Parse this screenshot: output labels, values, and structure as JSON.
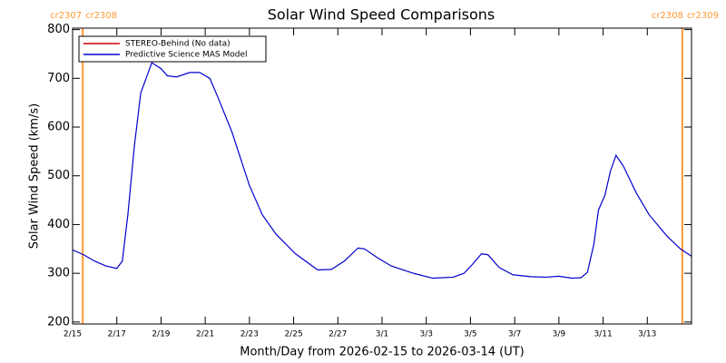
{
  "chart_data": {
    "type": "line",
    "title": "Solar Wind Speed Comparisons",
    "xlabel": "Month/Day from 2026-02-15 to 2026-03-14 (UT)",
    "ylabel": "Solar Wind Speed (km/s)",
    "xlim": [
      "2026-02-15",
      "2026-03-15"
    ],
    "ylim": [
      196,
      803
    ],
    "yticks": [
      200,
      300,
      400,
      500,
      600,
      700,
      800
    ],
    "xticks": [
      {
        "value": "2026-02-15",
        "label": "2/15"
      },
      {
        "value": "2026-02-17",
        "label": "2/17"
      },
      {
        "value": "2026-02-19",
        "label": "2/19"
      },
      {
        "value": "2026-02-21",
        "label": "2/21"
      },
      {
        "value": "2026-02-23",
        "label": "2/23"
      },
      {
        "value": "2026-02-25",
        "label": "2/25"
      },
      {
        "value": "2026-02-27",
        "label": "2/27"
      },
      {
        "value": "2026-03-01",
        "label": "3/1"
      },
      {
        "value": "2026-03-03",
        "label": "3/3"
      },
      {
        "value": "2026-03-05",
        "label": "3/5"
      },
      {
        "value": "2026-03-07",
        "label": "3/7"
      },
      {
        "value": "2026-03-09",
        "label": "3/9"
      },
      {
        "value": "2026-03-11",
        "label": "3/11"
      },
      {
        "value": "2026-03-13",
        "label": "3/13"
      }
    ],
    "legend": "upper left",
    "markers": [
      {
        "x": "2026-02-15T11:00",
        "labels": [
          "cr2307",
          "cr2308"
        ],
        "color": "#ff9933"
      },
      {
        "x": "2026-03-14T14:00",
        "labels": [
          "cr2308",
          "cr2309"
        ],
        "color": "#ff9933"
      }
    ],
    "x": [
      "2026-02-15T00:00",
      "2026-02-15T12:00",
      "2026-02-16T00:00",
      "2026-02-16T12:00",
      "2026-02-17T00:00",
      "2026-02-17T06:00",
      "2026-02-17T12:00",
      "2026-02-17T19:00",
      "2026-02-18T02:00",
      "2026-02-18T14:00",
      "2026-02-19T00:00",
      "2026-02-19T07:00",
      "2026-02-19T17:00",
      "2026-02-20T07:00",
      "2026-02-20T18:00",
      "2026-02-21T05:00",
      "2026-02-21T14:00",
      "2026-02-22T05:00",
      "2026-02-23T00:00",
      "2026-02-23T14:00",
      "2026-02-24T05:00",
      "2026-02-25T02:00",
      "2026-02-26T02:00",
      "2026-02-26T17:00",
      "2026-02-27T07:00",
      "2026-02-27T22:00",
      "2026-02-28T05:00",
      "2026-02-28T19:00",
      "2026-03-01T10:00",
      "2026-03-02T10:00",
      "2026-03-03T07:00",
      "2026-03-04T05:00",
      "2026-03-04T17:00",
      "2026-03-05T02:00",
      "2026-03-05T12:00",
      "2026-03-05T19:00",
      "2026-03-06T07:00",
      "2026-03-06T22:00",
      "2026-03-07T17:00",
      "2026-03-08T10:00",
      "2026-03-09T00:00",
      "2026-03-09T14:00",
      "2026-03-10T00:00",
      "2026-03-10T07:00",
      "2026-03-10T14:00",
      "2026-03-10T19:00",
      "2026-03-11T02:00",
      "2026-03-11T08:00",
      "2026-03-11T14:00",
      "2026-03-11T22:00",
      "2026-03-12T12:00",
      "2026-03-13T02:00",
      "2026-03-13T22:00",
      "2026-03-14T12:00",
      "2026-03-15T00:00"
    ],
    "series": [
      {
        "name": "STEREO-Behind (No data)",
        "color": "#cc0000"
      },
      {
        "name": "Predictive Science MAS Model",
        "color": "#0000cc",
        "values": [
          348,
          338,
          325,
          315,
          310,
          325,
          420,
          560,
          670,
          732,
          720,
          705,
          703,
          712,
          712,
          700,
          660,
          590,
          480,
          420,
          380,
          340,
          307,
          308,
          325,
          352,
          350,
          332,
          315,
          300,
          290,
          292,
          300,
          318,
          340,
          338,
          312,
          297,
          293,
          292,
          294,
          290,
          291,
          302,
          360,
          430,
          460,
          510,
          542,
          520,
          465,
          420,
          375,
          350,
          335
        ]
      }
    ]
  }
}
